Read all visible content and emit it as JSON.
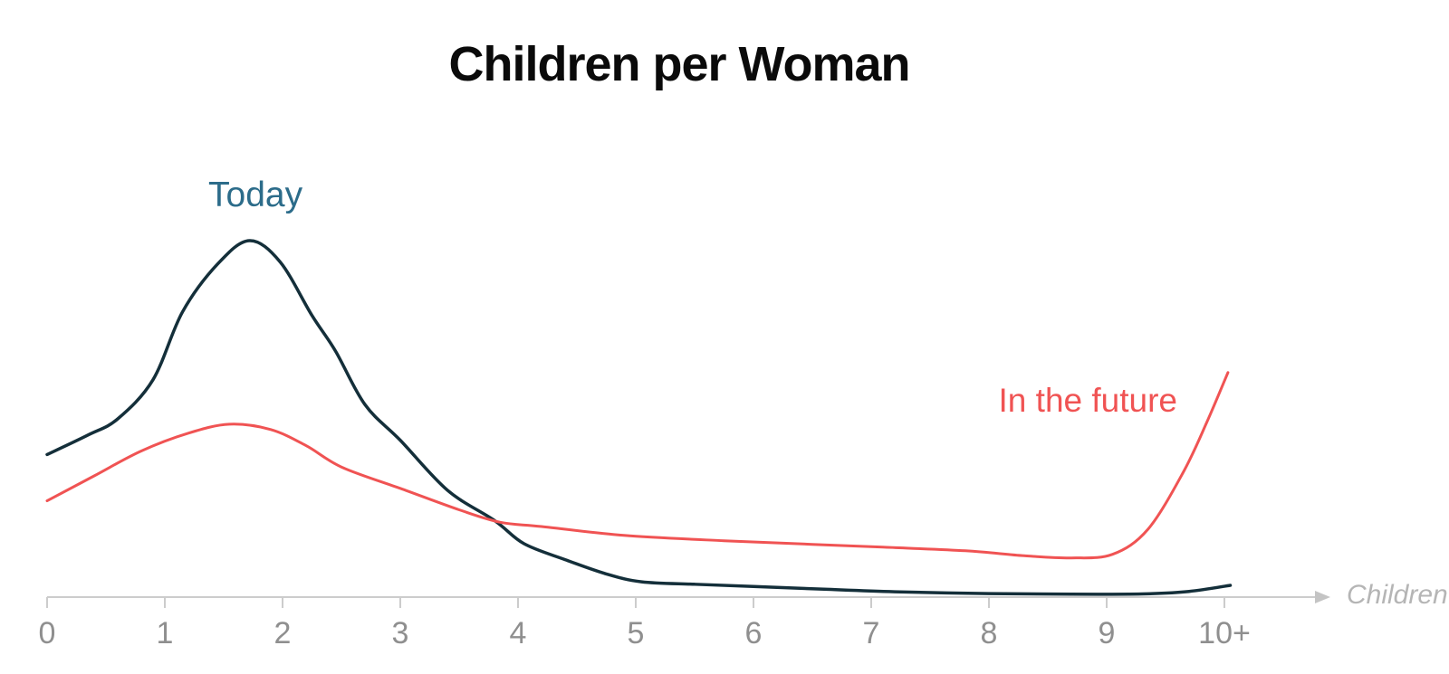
{
  "title": "Children per Woman",
  "annotations": {
    "today_label": "Today",
    "future_label": "In the future",
    "axis_label": "Children"
  },
  "colors": {
    "title_text": "#0a0a0a",
    "today_line": "#142f3a",
    "today_label": "#2c6c8a",
    "future_line": "#f05353",
    "future_label": "#f05353",
    "axis_line": "#cccccc",
    "axis_arrow": "#c4c4c4",
    "tick_text": "#8f8f8f",
    "axis_caption_text": "#b5b5b5",
    "background": "#ffffff"
  },
  "chart_data": {
    "type": "line",
    "title": "Children per Woman",
    "xlabel": "Children",
    "ylabel": "",
    "x_tick_labels": [
      "0",
      "1",
      "2",
      "3",
      "4",
      "5",
      "6",
      "7",
      "8",
      "9",
      "10+"
    ],
    "x_range": [
      0,
      10.8
    ],
    "y_units": "relative share of women (arbitrary units, Today peak = 100)",
    "grid": false,
    "legend_position": "inline-annotations",
    "series": [
      {
        "name": "Today",
        "line_color": "#142f3a",
        "label_color": "#2c6c8a",
        "peak": {
          "x": 1.72,
          "value": 100
        },
        "points": [
          [
            0,
            40
          ],
          [
            0.35,
            45.5
          ],
          [
            0.6,
            50
          ],
          [
            0.9,
            61
          ],
          [
            1.15,
            80
          ],
          [
            1.45,
            93.5
          ],
          [
            1.72,
            100
          ],
          [
            1.98,
            94
          ],
          [
            2.25,
            79
          ],
          [
            2.45,
            69
          ],
          [
            2.7,
            54
          ],
          [
            3.0,
            44
          ],
          [
            3.4,
            30
          ],
          [
            3.8,
            21.5
          ],
          [
            4.05,
            15
          ],
          [
            4.4,
            10.5
          ],
          [
            4.75,
            6.5
          ],
          [
            5.05,
            4.3
          ],
          [
            5.5,
            3.6
          ],
          [
            6.0,
            3.0
          ],
          [
            6.6,
            2.2
          ],
          [
            7.2,
            1.5
          ],
          [
            8.0,
            1.0
          ],
          [
            8.7,
            0.8
          ],
          [
            9.3,
            0.9
          ],
          [
            9.7,
            1.6
          ],
          [
            10.05,
            3.3
          ]
        ]
      },
      {
        "name": "In the future",
        "line_color": "#f05353",
        "label_color": "#f05353",
        "peak": {
          "x": 1.55,
          "value": 48.5
        },
        "points": [
          [
            0,
            27
          ],
          [
            0.4,
            34
          ],
          [
            0.8,
            41
          ],
          [
            1.2,
            46
          ],
          [
            1.55,
            48.5
          ],
          [
            1.9,
            47
          ],
          [
            2.2,
            42.5
          ],
          [
            2.5,
            36.5
          ],
          [
            3.0,
            30.5
          ],
          [
            3.5,
            24.5
          ],
          [
            3.85,
            21
          ],
          [
            4.2,
            19.8
          ],
          [
            4.9,
            17.3
          ],
          [
            5.75,
            15.8
          ],
          [
            6.5,
            14.8
          ],
          [
            7.1,
            14
          ],
          [
            7.8,
            13
          ],
          [
            8.3,
            11.6
          ],
          [
            8.7,
            11
          ],
          [
            9.05,
            12
          ],
          [
            9.35,
            19
          ],
          [
            9.65,
            35
          ],
          [
            9.85,
            49
          ],
          [
            10.03,
            63
          ]
        ]
      }
    ]
  }
}
